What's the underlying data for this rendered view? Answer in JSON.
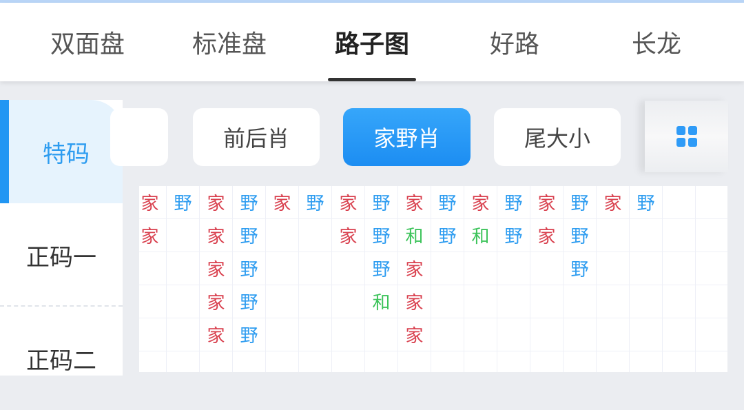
{
  "tabs": [
    {
      "label": "双面盘"
    },
    {
      "label": "标准盘"
    },
    {
      "label": "路子图",
      "active": true
    },
    {
      "label": "好路"
    },
    {
      "label": "长龙"
    }
  ],
  "sidebar": {
    "items": [
      {
        "label": "特码",
        "active": true
      },
      {
        "label": "正码一"
      },
      {
        "label": "正码二"
      }
    ]
  },
  "filters": [
    {
      "label": ""
    },
    {
      "label": "前后肖"
    },
    {
      "label": "家野肖",
      "active": true
    },
    {
      "label": "尾大小"
    }
  ],
  "layout_toggle": {
    "icon": "grid-icon"
  },
  "colors": {
    "家": "#d9414f",
    "野": "#2d9cf0",
    "和": "#3cc35a",
    "accent": "#2196f3"
  },
  "road": {
    "columns": [
      [
        "家",
        "家"
      ],
      [
        "野"
      ],
      [
        "家",
        "家",
        "家",
        "家",
        "家"
      ],
      [
        "野",
        "野",
        "野",
        "野",
        "野"
      ],
      [
        "家"
      ],
      [
        "野"
      ],
      [
        "家",
        "家"
      ],
      [
        "野",
        "野",
        "野",
        "和"
      ],
      [
        "家",
        "和",
        "家",
        "家",
        "家"
      ],
      [
        "野",
        "野"
      ],
      [
        "家",
        "和"
      ],
      [
        "野",
        "野"
      ],
      [
        "家",
        "家"
      ],
      [
        "野",
        "野",
        "野"
      ],
      [
        "家"
      ],
      [
        "野"
      ],
      [],
      []
    ]
  }
}
